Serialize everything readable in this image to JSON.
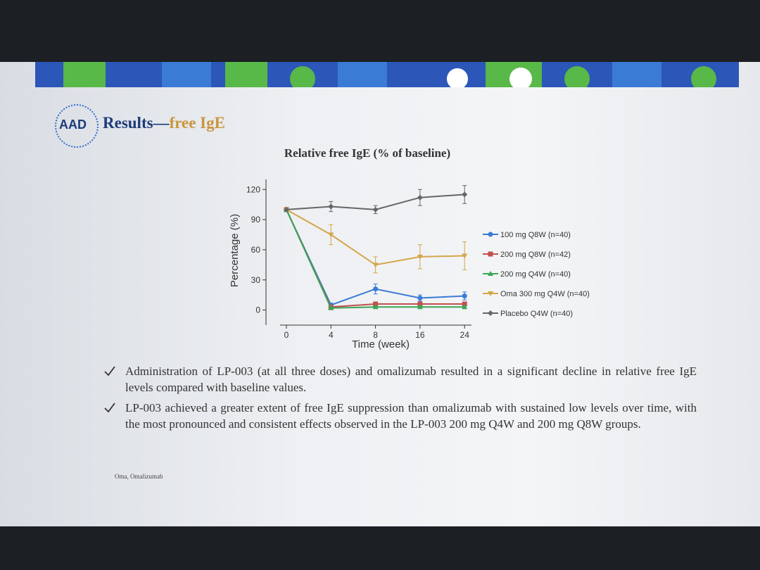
{
  "slide": {
    "logo": "AAD",
    "title": "Results—",
    "title_highlight": "free IgE",
    "bullets": [
      "Administration of LP-003 (at all three doses) and omalizumab resulted in a significant decline in relative free IgE levels compared with baseline values.",
      "LP-003 achieved a greater extent of free IgE suppression than omalizumab with sustained low levels over time, with the most pronounced and consistent effects observed in the LP-003 200 mg Q4W and 200 mg Q8W groups."
    ],
    "footnote": "Oma, Omalizumab"
  },
  "chart_data": {
    "type": "line",
    "title": "Relative free IgE (% of baseline)",
    "x_label": "Time (week)",
    "y_label": "Percentage (%)",
    "categories": [
      "0",
      "4",
      "8",
      "16",
      "24"
    ],
    "ylim": [
      -15,
      130
    ],
    "yticks": [
      0,
      30,
      60,
      90,
      120
    ],
    "series": [
      {
        "name": "100 mg Q8W (n=40)",
        "color": "#3a7bd5",
        "marker": "circle",
        "values": [
          100,
          5,
          21,
          12,
          14
        ],
        "errors": [
          0,
          2,
          5,
          3,
          4
        ]
      },
      {
        "name": "200 mg Q8W (n=42)",
        "color": "#c0504d",
        "marker": "square",
        "values": [
          100,
          3,
          6,
          6,
          6
        ],
        "errors": [
          0,
          1,
          2,
          2,
          2
        ]
      },
      {
        "name": "200 mg Q4W (n=40)",
        "color": "#3aa655",
        "marker": "triangle",
        "values": [
          100,
          2,
          3,
          3,
          3
        ],
        "errors": [
          0,
          1,
          1,
          1,
          1
        ]
      },
      {
        "name": "Oma 300 mg Q4W (n=40)",
        "color": "#d4a64a",
        "marker": "triangle-down",
        "values": [
          100,
          75,
          45,
          53,
          54
        ],
        "errors": [
          0,
          10,
          8,
          12,
          14
        ]
      },
      {
        "name": "Placebo Q4W (n=40)",
        "color": "#666666",
        "marker": "diamond",
        "values": [
          100,
          103,
          100,
          112,
          115
        ],
        "errors": [
          0,
          5,
          4,
          8,
          9
        ]
      }
    ]
  }
}
